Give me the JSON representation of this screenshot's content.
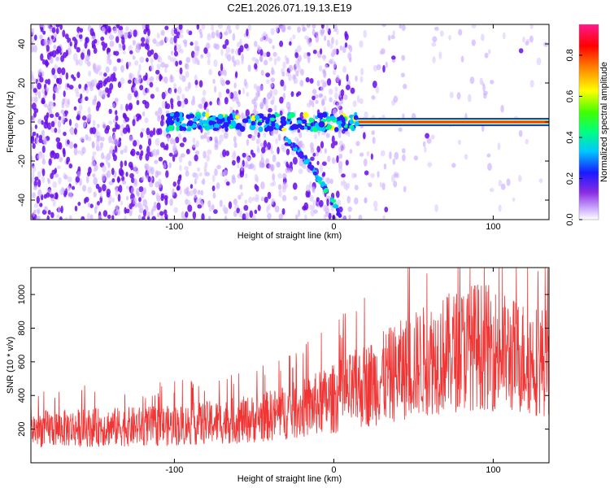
{
  "title": "C2E1.2026.071.19.13.E19",
  "chart_data": [
    {
      "type": "heatmap",
      "title": "",
      "xlabel": "Height of straight line (km)",
      "ylabel": "Frequency (Hz)",
      "xlim": [
        -190,
        135
      ],
      "ylim": [
        -50,
        50
      ],
      "xticks": [
        -100,
        0,
        100
      ],
      "yticks": [
        -40,
        -20,
        0,
        20,
        40
      ],
      "colorbar": {
        "label": "Normalized spectral amplitude",
        "range": [
          0.0,
          0.95
        ],
        "ticks": [
          0.0,
          0.2,
          0.4,
          0.6,
          0.8
        ],
        "colors": [
          "#ffffff",
          "#9b30ff",
          "#1010ff",
          "#00ffff",
          "#00ff00",
          "#ffff00",
          "#ff8000",
          "#ff0000",
          "#ff1493"
        ]
      },
      "features": [
        {
          "name": "carrier line",
          "x": [
            15,
            135
          ],
          "frequency": 0,
          "amplitude": 0.95
        },
        {
          "name": "main echo",
          "x": [
            -105,
            15
          ],
          "frequency": 0,
          "amplitude": 0.45
        },
        {
          "name": "doppler branch",
          "x": [
            -30,
            5
          ],
          "frequency": [
            -10,
            -50
          ],
          "amplitude": 0.3
        }
      ]
    },
    {
      "type": "line",
      "title": "",
      "xlabel": "Height of straight line (km)",
      "ylabel": "SNR (10 * v/v)",
      "xlim": [
        -190,
        135
      ],
      "ylim": [
        0,
        1160
      ],
      "xticks": [
        -100,
        0,
        100
      ],
      "yticks": [
        200,
        400,
        600,
        800,
        1000
      ],
      "series": [
        {
          "name": "SNR",
          "color": "#f03535",
          "x": [
            -190,
            -150,
            -100,
            -50,
            -20,
            0,
            30,
            60,
            90,
            100,
            110,
            135
          ],
          "values": [
            200,
            210,
            220,
            260,
            320,
            380,
            500,
            620,
            700,
            680,
            640,
            600
          ]
        }
      ]
    }
  ]
}
